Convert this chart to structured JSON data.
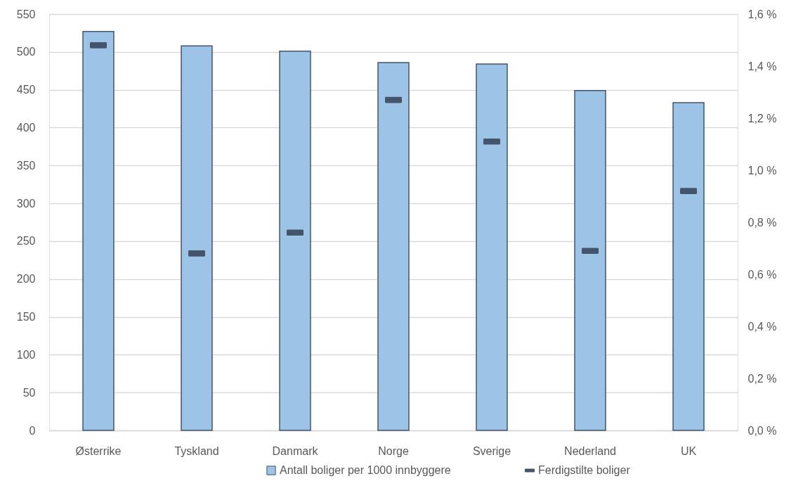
{
  "chart_data": {
    "type": "bar",
    "categories": [
      "Østerrike",
      "Tyskland",
      "Danmark",
      "Norge",
      "Sverige",
      "Nederland",
      "UK"
    ],
    "series": [
      {
        "name": "Antall boliger per 1000 innbyggere",
        "color": "#9dc3e6",
        "values": [
          527,
          508,
          501,
          486,
          484,
          449,
          433
        ]
      },
      {
        "name": "Ferdigstilte boliger",
        "type": "scatter",
        "axis": "y2",
        "color": "#44546a",
        "values": [
          1.48,
          0.68,
          0.76,
          1.27,
          1.11,
          0.69,
          0.92
        ]
      }
    ],
    "ylim": [
      0,
      550
    ],
    "yticks": [
      0,
      50,
      100,
      150,
      200,
      250,
      300,
      350,
      400,
      450,
      500,
      550
    ],
    "y2lim": [
      0,
      1.6
    ],
    "y2ticks": [
      {
        "value": 0,
        "label": "0,0 %"
      },
      {
        "value": 0.2,
        "label": "0,2 %"
      },
      {
        "value": 0.4,
        "label": "0,4 %"
      },
      {
        "value": 0.6,
        "label": "0,6 %"
      },
      {
        "value": 0.8,
        "label": "0,8 %"
      },
      {
        "value": 1.0,
        "label": "1,0 %"
      },
      {
        "value": 1.2,
        "label": "1,2 %"
      },
      {
        "value": 1.4,
        "label": "1,4 %"
      },
      {
        "value": 1.6,
        "label": "1,6 %"
      }
    ],
    "grid": "y",
    "legend": "bottom"
  }
}
